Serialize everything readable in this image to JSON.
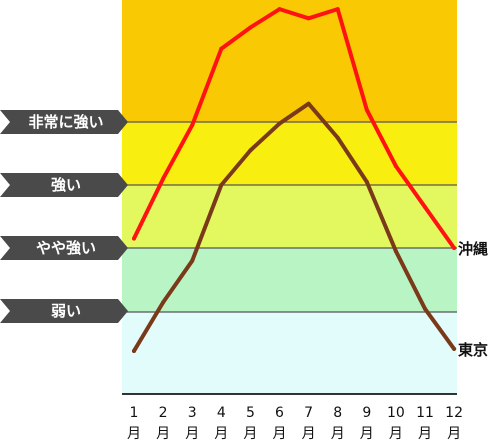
{
  "chart_data": {
    "type": "line",
    "x": [
      1,
      2,
      3,
      4,
      5,
      6,
      7,
      8,
      9,
      10,
      11,
      12
    ],
    "x_tick_labels": [
      "1",
      "2",
      "3",
      "4",
      "5",
      "6",
      "7",
      "8",
      "9",
      "10",
      "11",
      "12"
    ],
    "x_unit": "月",
    "ylim": [
      0,
      10
    ],
    "bands": [
      {
        "label": "",
        "from": 0,
        "to": 2,
        "color": "#e2fbfb"
      },
      {
        "label": "弱い",
        "from": 2,
        "to": 4,
        "color": "#b9f4c4"
      },
      {
        "label": "やや強い",
        "from": 4,
        "to": 6,
        "color": "#e3f85e"
      },
      {
        "label": "強い",
        "from": 6,
        "to": 8,
        "color": "#f8ef10"
      },
      {
        "label": "非常に強い",
        "from": 8,
        "to": 10,
        "color": "#f9c904"
      }
    ],
    "series": [
      {
        "name": "沖縄",
        "color": "#ff1212",
        "values": [
          4.3,
          6.2,
          7.9,
          9.2,
          9.55,
          9.85,
          9.7,
          9.85,
          8.2,
          6.6,
          5.3,
          4.0
        ]
      },
      {
        "name": "東京",
        "color": "#7a3a1a",
        "values": [
          1.05,
          2.3,
          3.6,
          6.0,
          7.1,
          7.95,
          8.3,
          7.5,
          6.1,
          3.9,
          2.1,
          1.1
        ]
      }
    ],
    "grid": true,
    "legend": "line-end labels"
  }
}
